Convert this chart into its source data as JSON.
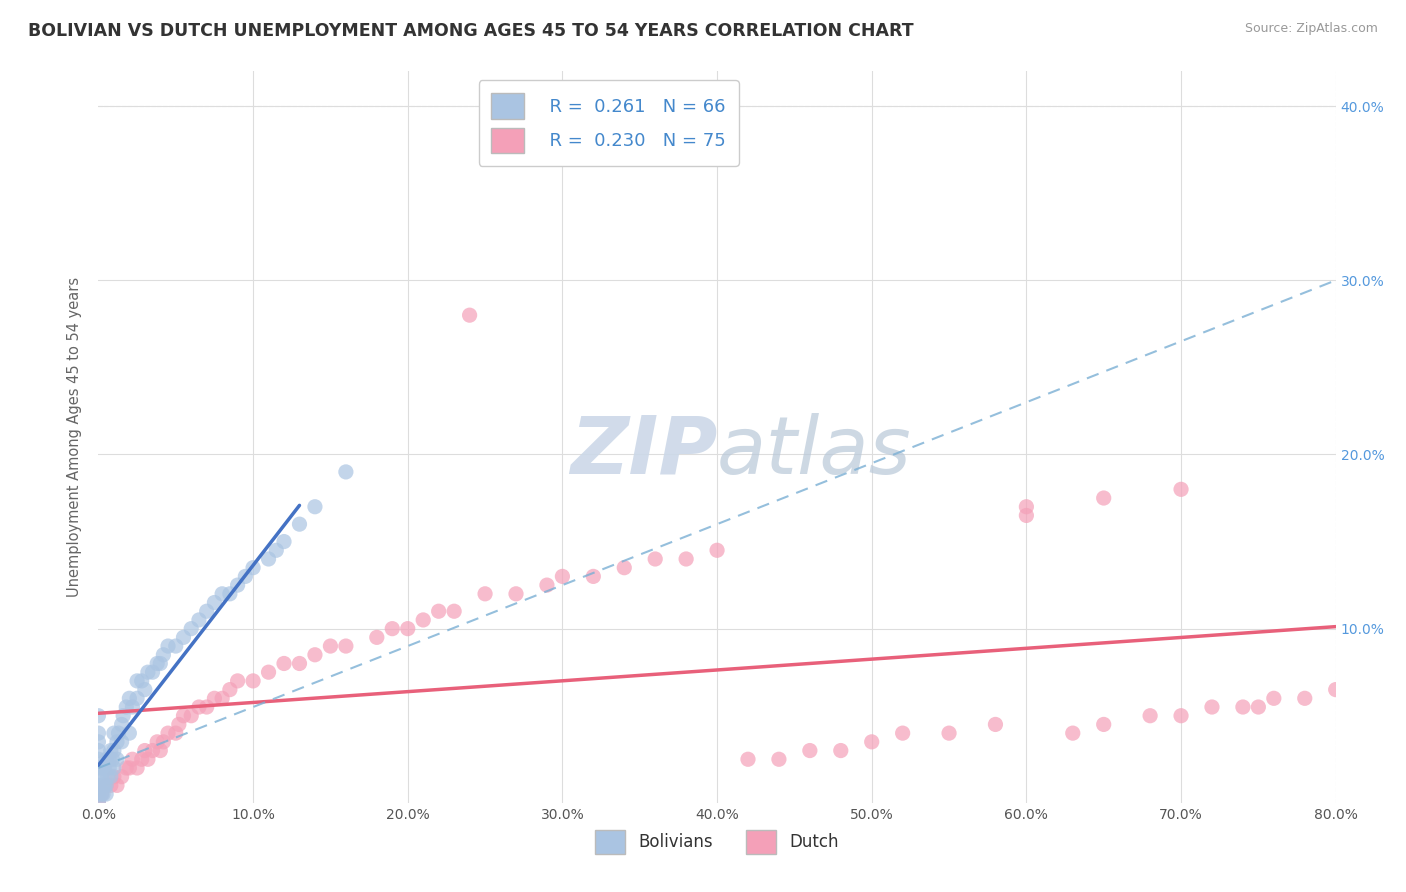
{
  "title": "BOLIVIAN VS DUTCH UNEMPLOYMENT AMONG AGES 45 TO 54 YEARS CORRELATION CHART",
  "source": "Source: ZipAtlas.com",
  "ylabel": "Unemployment Among Ages 45 to 54 years",
  "xlim": [
    0.0,
    0.8
  ],
  "ylim": [
    0.0,
    0.42
  ],
  "xticks": [
    0.0,
    0.1,
    0.2,
    0.3,
    0.4,
    0.5,
    0.6,
    0.7,
    0.8
  ],
  "xticklabels": [
    "0.0%",
    "10.0%",
    "20.0%",
    "30.0%",
    "40.0%",
    "50.0%",
    "60.0%",
    "70.0%",
    "80.0%"
  ],
  "yticks_right": [
    0.1,
    0.2,
    0.3,
    0.4
  ],
  "yticklabels_right": [
    "10.0%",
    "20.0%",
    "30.0%",
    "40.0%"
  ],
  "legend_r1": "R =  0.261",
  "legend_n1": "N = 66",
  "legend_r2": "R =  0.230",
  "legend_n2": "N = 75",
  "bolivian_color": "#aac4e2",
  "dutch_color": "#f4a0b8",
  "bolivian_line_color": "#4472c4",
  "dutch_line_color": "#e8607a",
  "dashed_line_color": "#7bafd4",
  "grid_color": "#dddddd",
  "background_color": "#ffffff",
  "watermark_color": "#ccd8e8",
  "bolivian_N": 66,
  "dutch_N": 75,
  "bolivian_x": [
    0.0,
    0.0,
    0.0,
    0.0,
    0.0,
    0.0,
    0.0,
    0.0,
    0.0,
    0.0,
    0.002,
    0.002,
    0.003,
    0.003,
    0.003,
    0.004,
    0.004,
    0.005,
    0.005,
    0.005,
    0.006,
    0.007,
    0.007,
    0.008,
    0.008,
    0.009,
    0.01,
    0.01,
    0.01,
    0.012,
    0.012,
    0.013,
    0.015,
    0.015,
    0.016,
    0.018,
    0.02,
    0.02,
    0.022,
    0.025,
    0.025,
    0.028,
    0.03,
    0.032,
    0.035,
    0.038,
    0.04,
    0.042,
    0.045,
    0.05,
    0.055,
    0.06,
    0.065,
    0.07,
    0.075,
    0.08,
    0.085,
    0.09,
    0.095,
    0.1,
    0.11,
    0.115,
    0.12,
    0.13,
    0.14,
    0.16
  ],
  "bolivian_y": [
    0.0,
    0.005,
    0.01,
    0.015,
    0.02,
    0.025,
    0.03,
    0.035,
    0.04,
    0.05,
    0.005,
    0.015,
    0.005,
    0.01,
    0.02,
    0.01,
    0.02,
    0.005,
    0.01,
    0.025,
    0.015,
    0.02,
    0.025,
    0.015,
    0.03,
    0.025,
    0.02,
    0.03,
    0.04,
    0.025,
    0.035,
    0.04,
    0.035,
    0.045,
    0.05,
    0.055,
    0.04,
    0.06,
    0.055,
    0.06,
    0.07,
    0.07,
    0.065,
    0.075,
    0.075,
    0.08,
    0.08,
    0.085,
    0.09,
    0.09,
    0.095,
    0.1,
    0.105,
    0.11,
    0.115,
    0.12,
    0.12,
    0.125,
    0.13,
    0.135,
    0.14,
    0.145,
    0.15,
    0.16,
    0.17,
    0.19
  ],
  "dutch_x": [
    0.0,
    0.0,
    0.002,
    0.005,
    0.008,
    0.01,
    0.012,
    0.015,
    0.018,
    0.02,
    0.022,
    0.025,
    0.028,
    0.03,
    0.032,
    0.035,
    0.038,
    0.04,
    0.042,
    0.045,
    0.05,
    0.052,
    0.055,
    0.06,
    0.065,
    0.07,
    0.075,
    0.08,
    0.085,
    0.09,
    0.1,
    0.11,
    0.12,
    0.13,
    0.14,
    0.15,
    0.16,
    0.18,
    0.19,
    0.2,
    0.21,
    0.22,
    0.23,
    0.24,
    0.25,
    0.27,
    0.29,
    0.3,
    0.32,
    0.34,
    0.36,
    0.38,
    0.4,
    0.42,
    0.44,
    0.46,
    0.48,
    0.5,
    0.52,
    0.55,
    0.58,
    0.6,
    0.63,
    0.65,
    0.68,
    0.7,
    0.72,
    0.74,
    0.76,
    0.78,
    0.8,
    0.6,
    0.65,
    0.7,
    0.75
  ],
  "dutch_y": [
    0.0,
    0.005,
    0.005,
    0.01,
    0.01,
    0.015,
    0.01,
    0.015,
    0.02,
    0.02,
    0.025,
    0.02,
    0.025,
    0.03,
    0.025,
    0.03,
    0.035,
    0.03,
    0.035,
    0.04,
    0.04,
    0.045,
    0.05,
    0.05,
    0.055,
    0.055,
    0.06,
    0.06,
    0.065,
    0.07,
    0.07,
    0.075,
    0.08,
    0.08,
    0.085,
    0.09,
    0.09,
    0.095,
    0.1,
    0.1,
    0.105,
    0.11,
    0.11,
    0.28,
    0.12,
    0.12,
    0.125,
    0.13,
    0.13,
    0.135,
    0.14,
    0.14,
    0.145,
    0.025,
    0.025,
    0.03,
    0.03,
    0.035,
    0.04,
    0.04,
    0.045,
    0.165,
    0.04,
    0.045,
    0.05,
    0.05,
    0.055,
    0.055,
    0.06,
    0.06,
    0.065,
    0.17,
    0.175,
    0.18,
    0.055
  ]
}
